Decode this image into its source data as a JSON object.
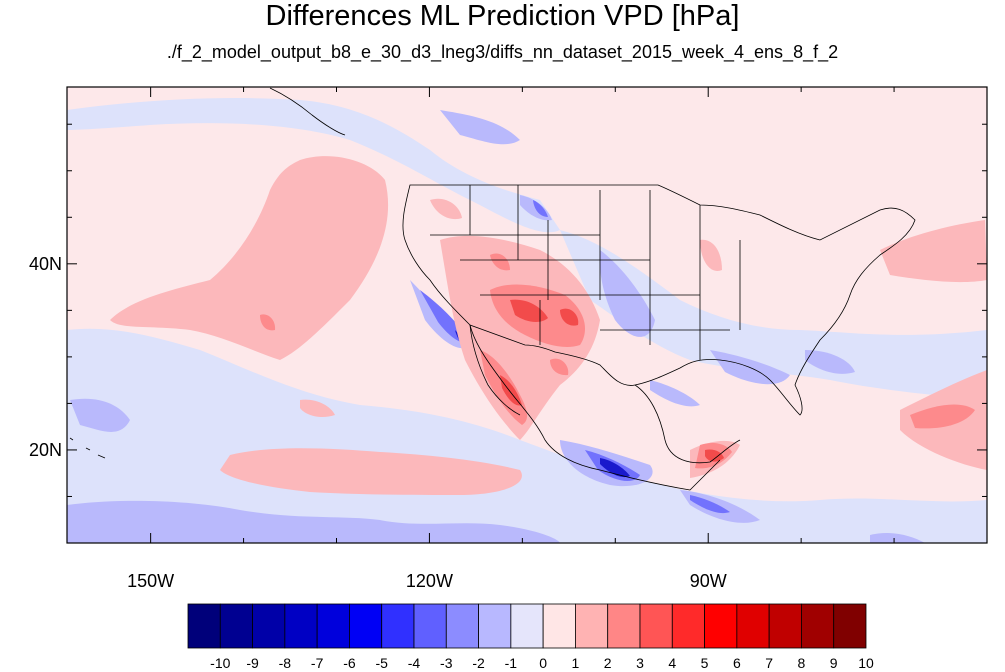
{
  "title": "Differences ML Prediction VPD [hPa]",
  "subtitle": "./f_2_model_output_b8_e_30_d3_lneg3/diffs_nn_dataset_2015_week_4_ens_8_f_2",
  "axes": {
    "x_ticks": [
      {
        "label": "150W",
        "lon": -150
      },
      {
        "label": "120W",
        "lon": -120
      },
      {
        "label": "90W",
        "lon": -90
      }
    ],
    "y_ticks": [
      {
        "label": "40N",
        "lat": 40
      },
      {
        "label": "20N",
        "lat": 20
      }
    ]
  },
  "colorbar": {
    "labels": [
      "-10",
      "-9",
      "-8",
      "-7",
      "-6",
      "-5",
      "-4",
      "-3",
      "-2",
      "-1",
      "0",
      "1",
      "2",
      "3",
      "4",
      "5",
      "6",
      "7",
      "8",
      "9",
      "10"
    ],
    "colors": [
      "#00007a",
      "#000091",
      "#0000a8",
      "#0000c4",
      "#0000dc",
      "#0000f5",
      "#3030ff",
      "#6060ff",
      "#8c8cff",
      "#b8b8ff",
      "#e5e5fb",
      "#ffe6e6",
      "#ffb3b3",
      "#ff8686",
      "#ff5555",
      "#ff2a2a",
      "#ff0000",
      "#e00000",
      "#c00000",
      "#a00000",
      "#800000"
    ]
  },
  "map": {
    "extent": {
      "lon_min": -159,
      "lon_max": -60,
      "lat_min": 10,
      "lat_max": 59
    },
    "background_color": "#fde8ea"
  }
}
